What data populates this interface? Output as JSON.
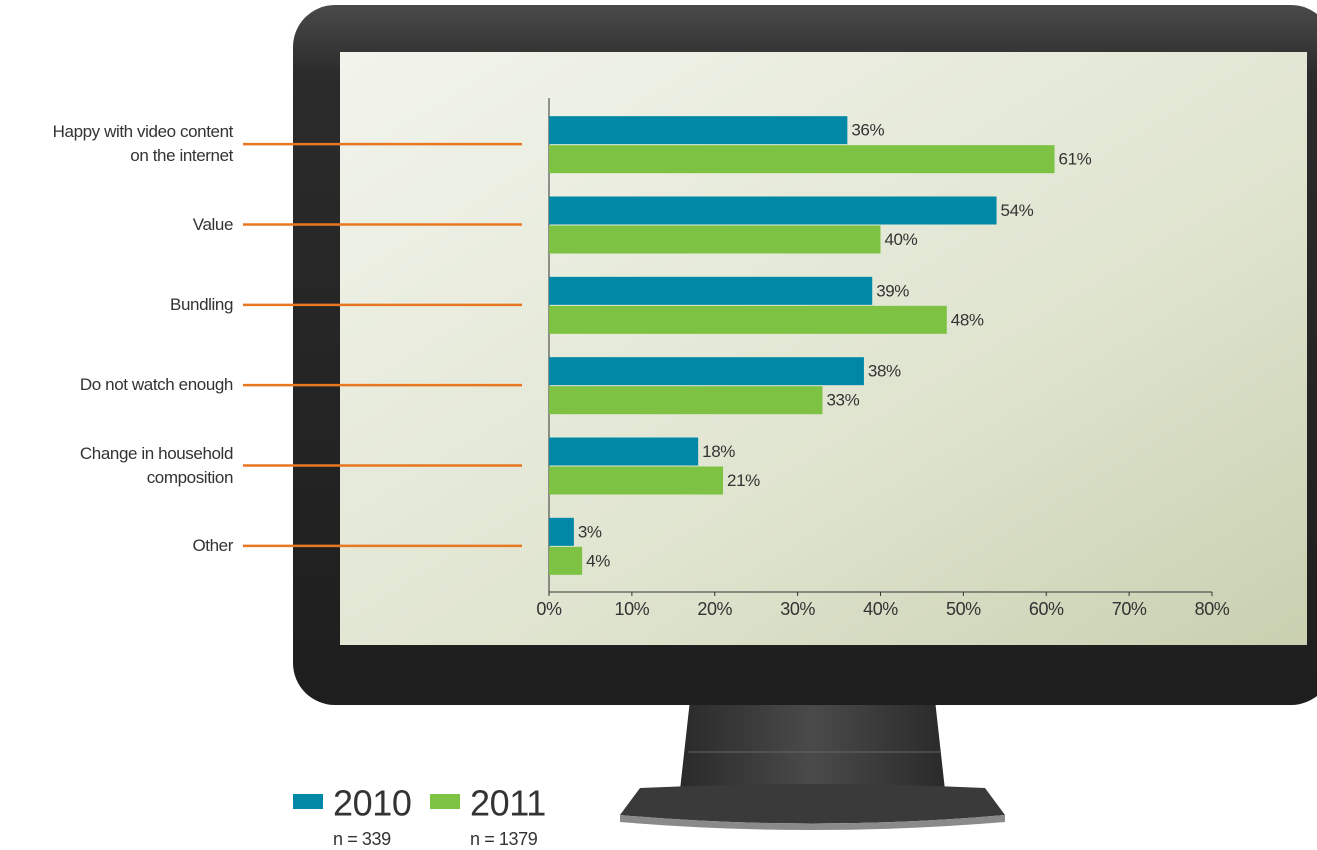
{
  "chart_data": {
    "type": "bar",
    "orientation": "horizontal",
    "categories": [
      "Happy with video content\non the internet",
      "Value",
      "Bundling",
      "Do not watch enough",
      "Change in household\ncomposition",
      "Other"
    ],
    "series": [
      {
        "name": "2010",
        "note": "n = 339",
        "color": "#0088a6",
        "values": [
          36,
          54,
          39,
          38,
          18,
          3
        ],
        "value_labels": [
          "36%",
          "54%",
          "39%",
          "38%",
          "18%",
          "3%"
        ]
      },
      {
        "name": "2011",
        "note": "n = 1379",
        "color": "#7dc242",
        "values": [
          61,
          40,
          48,
          33,
          21,
          4
        ],
        "value_labels": [
          "61%",
          "40%",
          "48%",
          "33%",
          "21%",
          "4%"
        ]
      }
    ],
    "xlim": [
      0,
      80
    ],
    "xticks": [
      {
        "value": 0,
        "label": "0%"
      },
      {
        "value": 10,
        "label": "10%"
      },
      {
        "value": 20,
        "label": "20%"
      },
      {
        "value": 30,
        "label": "30%"
      },
      {
        "value": 40,
        "label": "40%"
      },
      {
        "value": 50,
        "label": "50%"
      },
      {
        "value": 60,
        "label": "60%"
      },
      {
        "value": 70,
        "label": "70%"
      },
      {
        "value": 80,
        "label": "80%"
      }
    ],
    "connector_color": "#e87722"
  }
}
